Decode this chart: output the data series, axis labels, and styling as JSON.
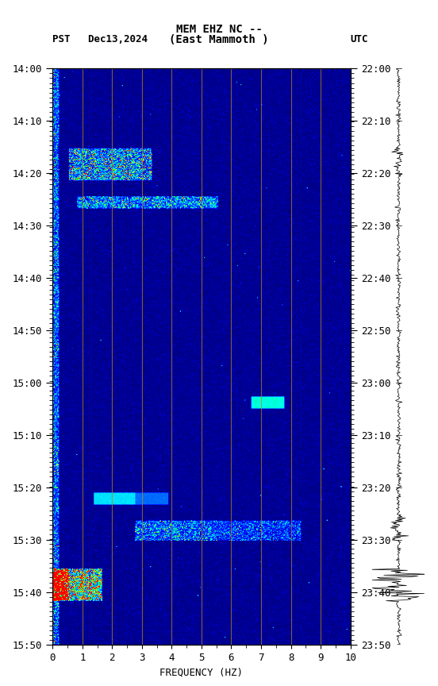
{
  "title_line1": "MEM EHZ NC --",
  "title_line2": "(East Mammoth )",
  "left_label": "PST   Dec13,2024",
  "right_label": "UTC",
  "y_left_ticks": [
    "14:00",
    "14:10",
    "14:20",
    "14:30",
    "14:40",
    "14:50",
    "15:00",
    "15:10",
    "15:20",
    "15:30",
    "15:40",
    "15:50"
  ],
  "y_right_ticks": [
    "22:00",
    "22:10",
    "22:20",
    "22:30",
    "22:40",
    "22:50",
    "23:00",
    "23:10",
    "23:20",
    "23:30",
    "23:40",
    "23:50"
  ],
  "x_ticks": [
    0,
    1,
    2,
    3,
    4,
    5,
    6,
    7,
    8,
    9,
    10
  ],
  "xlabel": "FREQUENCY (HZ)",
  "freq_min": 0,
  "freq_max": 10,
  "time_steps": 720,
  "freq_bins": 360,
  "vertical_lines_freq": [
    1,
    2,
    3,
    4,
    5,
    6,
    7,
    8,
    9
  ],
  "vline_color": "#b8860b",
  "background_color": "#000080",
  "figsize": [
    5.52,
    8.64
  ],
  "dpi": 100
}
